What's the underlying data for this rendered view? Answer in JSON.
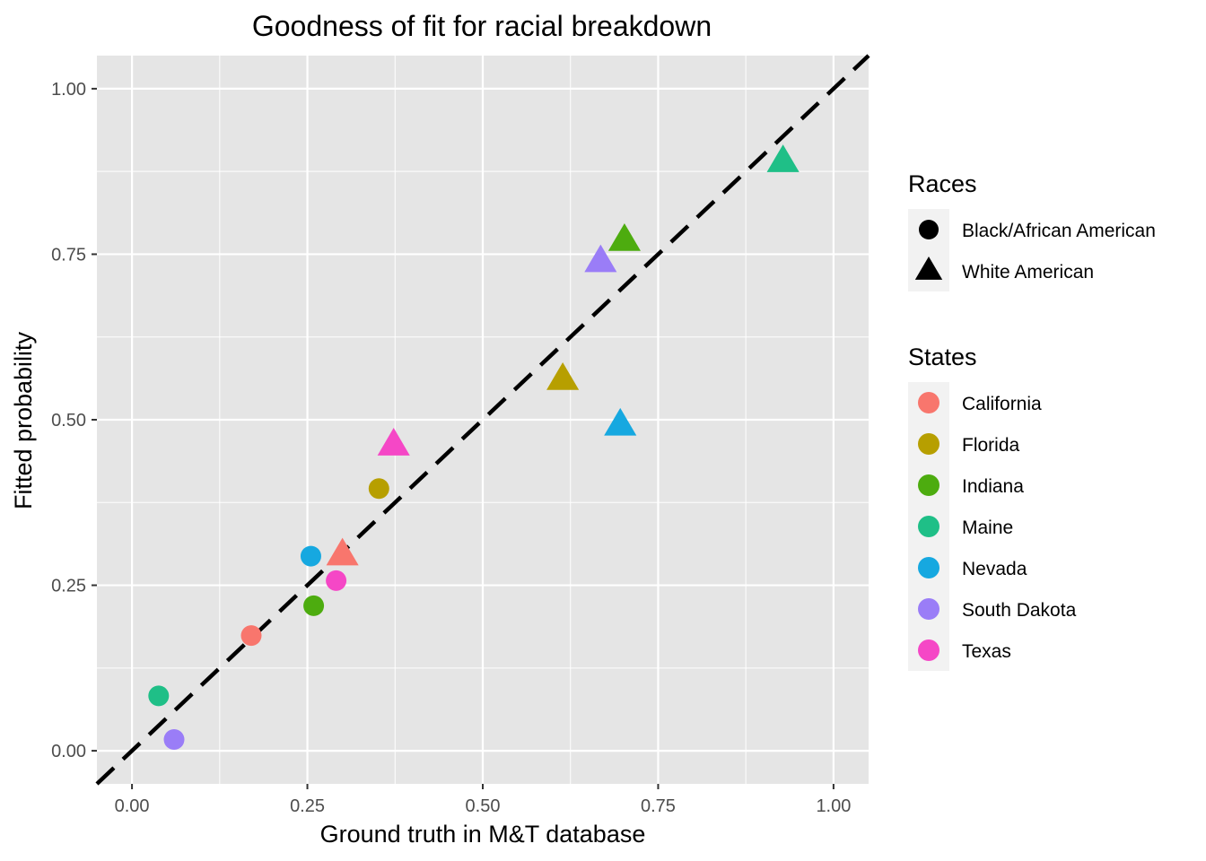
{
  "chart_data": {
    "type": "scatter",
    "title": "Goodness of fit for racial breakdown",
    "xlabel": "Ground truth in M&T database",
    "ylabel": "Fitted probability",
    "xlim": [
      -0.05,
      1.05
    ],
    "ylim": [
      -0.05,
      1.05
    ],
    "x_ticks": [
      "0.00",
      "0.25",
      "0.50",
      "0.75",
      "1.00"
    ],
    "y_ticks": [
      "0.00",
      "0.25",
      "0.50",
      "0.75",
      "1.00"
    ],
    "grid": true,
    "reference_line": {
      "style": "dashed",
      "slope": 1,
      "intercept": 0,
      "color": "#000000"
    },
    "legend_position": "right",
    "legends": {
      "races": {
        "title": "Races",
        "entries": [
          {
            "label": "Black/African American",
            "shape": "circle"
          },
          {
            "label": "White American",
            "shape": "triangle"
          }
        ]
      },
      "states": {
        "title": "States",
        "entries": [
          {
            "label": "California",
            "color": "#F8766D"
          },
          {
            "label": "Florida",
            "color": "#B79F00"
          },
          {
            "label": "Indiana",
            "color": "#4DAC0F"
          },
          {
            "label": "Maine",
            "color": "#1FBF87"
          },
          {
            "label": "Nevada",
            "color": "#16A8E0"
          },
          {
            "label": "South Dakota",
            "color": "#9A7DF7"
          },
          {
            "label": "Texas",
            "color": "#F547C6"
          }
        ]
      }
    },
    "points": [
      {
        "state": "California",
        "race": "Black/African American",
        "x": 0.17,
        "y": 0.174
      },
      {
        "state": "California",
        "race": "White American",
        "x": 0.3,
        "y": 0.296
      },
      {
        "state": "Florida",
        "race": "Black/African American",
        "x": 0.352,
        "y": 0.396
      },
      {
        "state": "Florida",
        "race": "White American",
        "x": 0.614,
        "y": 0.561
      },
      {
        "state": "Indiana",
        "race": "Black/African American",
        "x": 0.259,
        "y": 0.219
      },
      {
        "state": "Indiana",
        "race": "White American",
        "x": 0.702,
        "y": 0.771
      },
      {
        "state": "Maine",
        "race": "Black/African American",
        "x": 0.038,
        "y": 0.083
      },
      {
        "state": "Maine",
        "race": "White American",
        "x": 0.928,
        "y": 0.89
      },
      {
        "state": "Nevada",
        "race": "Black/African American",
        "x": 0.255,
        "y": 0.294
      },
      {
        "state": "Nevada",
        "race": "White American",
        "x": 0.696,
        "y": 0.492
      },
      {
        "state": "South Dakota",
        "race": "Black/African American",
        "x": 0.06,
        "y": 0.017
      },
      {
        "state": "South Dakota",
        "race": "White American",
        "x": 0.668,
        "y": 0.739
      },
      {
        "state": "Texas",
        "race": "Black/African American",
        "x": 0.291,
        "y": 0.257
      },
      {
        "state": "Texas",
        "race": "White American",
        "x": 0.373,
        "y": 0.462
      }
    ]
  }
}
